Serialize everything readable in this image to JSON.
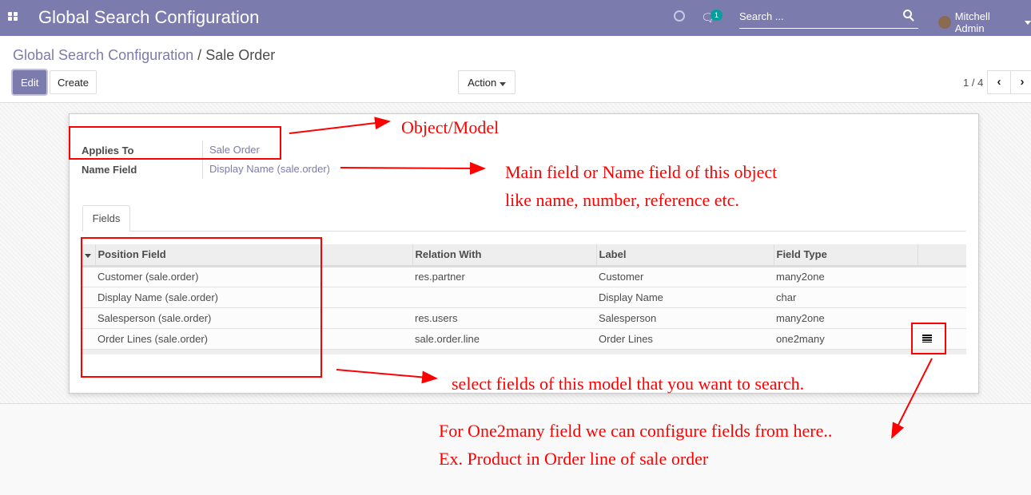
{
  "navbar": {
    "app_title": "Global Search Configuration",
    "messages_count": "1",
    "search_placeholder": "Search ...",
    "user_name": "Mitchell Admin",
    "color": "#7c7bad"
  },
  "breadcrumb": {
    "parent": "Global Search Configuration",
    "separator": "/",
    "current": "Sale Order"
  },
  "toolbar": {
    "edit_label": "Edit",
    "create_label": "Create",
    "action_label": "Action",
    "pager": "1 / 4"
  },
  "form": {
    "applies_to_label": "Applies To",
    "applies_to_value": "Sale Order",
    "name_field_label": "Name Field",
    "name_field_value": "Display Name (sale.order)",
    "tab_fields": "Fields",
    "columns": [
      "Position Field",
      "Relation With",
      "Label",
      "Field Type"
    ],
    "rows": [
      [
        "Customer (sale.order)",
        "res.partner",
        "Customer",
        "many2one"
      ],
      [
        "Display Name (sale.order)",
        "",
        "Display Name",
        "char"
      ],
      [
        "Salesperson (sale.order)",
        "res.users",
        "Salesperson",
        "many2one"
      ],
      [
        "Order Lines (sale.order)",
        "sale.order.line",
        "Order Lines",
        "one2many"
      ]
    ]
  },
  "annotations": {
    "object_model": "Object/Model",
    "main_field_1": "Main field or Name field of this object",
    "main_field_2": "like name, number, reference etc.",
    "select_fields": "select fields of this model that you want to search.",
    "one2many_1": "For One2many field we can configure fields from here..",
    "one2many_2": "Ex. Product in Order line of sale order",
    "color": "#ff0000"
  }
}
